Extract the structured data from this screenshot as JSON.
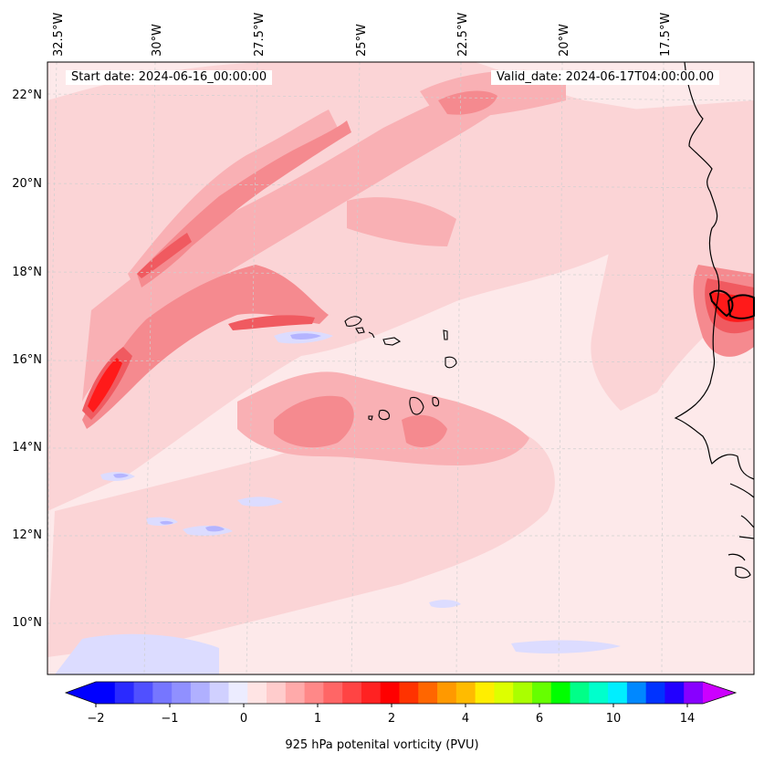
{
  "map": {
    "start_date": "Start date: 2024-06-16_00:00:00",
    "valid_date": "Valid_date: 2024-06-17T04:00:00.00",
    "longitude_labels": [
      "32.5°W",
      "30°W",
      "27.5°W",
      "25°W",
      "22.5°W",
      "20°W",
      "17.5°W"
    ],
    "latitude_labels": [
      "22°N",
      "20°N",
      "18°N",
      "16°N",
      "14°N",
      "12°N",
      "10°N"
    ],
    "field_colors": {
      "background": "#fde9ea",
      "light_pink": "#fbd4d6",
      "pink": "#f9b0b4",
      "medium_red": "#f58a8f",
      "red": "#f05a60",
      "strong_red": "#ff1a1a",
      "light_blue": "#dcdcff",
      "blue": "#b4b4ff"
    }
  },
  "colorbar": {
    "title": "925 hPa potenital vorticity (PVU)",
    "tick_labels": [
      "−2",
      "−1",
      "0",
      "1",
      "2",
      "4",
      "6",
      "10",
      "14"
    ],
    "colors": [
      "#0000ff",
      "#2a2aff",
      "#5050ff",
      "#7676ff",
      "#9090ff",
      "#b0b0ff",
      "#d0d0ff",
      "#ececff",
      "#ffe4e4",
      "#ffcccc",
      "#ffaaaa",
      "#ff8888",
      "#ff6666",
      "#ff4444",
      "#ff2222",
      "#ff0000",
      "#ff3300",
      "#ff6600",
      "#ff9900",
      "#ffbb00",
      "#ffee00",
      "#ddff00",
      "#aaff00",
      "#66ff00",
      "#00ff00",
      "#00ff88",
      "#00ffcc",
      "#00eeff",
      "#0088ff",
      "#0033ff",
      "#2200ff",
      "#8800ff"
    ],
    "under_color": "#0000ff",
    "over_color": "#cc00ff"
  }
}
